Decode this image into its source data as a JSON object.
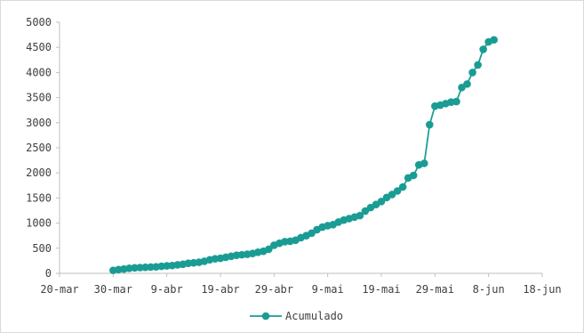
{
  "chart_data": {
    "type": "line",
    "title": "",
    "xlabel": "",
    "ylabel": "",
    "x_axis": {
      "type": "date",
      "range": [
        "2020-03-20",
        "2020-06-18"
      ],
      "tick_labels": [
        "20-mar",
        "30-mar",
        "9-abr",
        "19-abr",
        "29-abr",
        "9-mai",
        "19-mai",
        "29-mai",
        "8-jun",
        "18-jun"
      ]
    },
    "y_axis": {
      "range": [
        0,
        5000
      ],
      "tick_labels": [
        "0",
        "500",
        "1000",
        "1500",
        "2000",
        "2500",
        "3000",
        "3500",
        "4000",
        "4500",
        "5000"
      ]
    },
    "grid": false,
    "legend_position": "bottom",
    "color": "#1a9c94",
    "series": [
      {
        "name": "Acumulado",
        "x": [
          "2020-03-30",
          "2020-03-31",
          "2020-04-01",
          "2020-04-02",
          "2020-04-03",
          "2020-04-04",
          "2020-04-05",
          "2020-04-06",
          "2020-04-07",
          "2020-04-08",
          "2020-04-09",
          "2020-04-10",
          "2020-04-11",
          "2020-04-12",
          "2020-04-13",
          "2020-04-14",
          "2020-04-15",
          "2020-04-16",
          "2020-04-17",
          "2020-04-18",
          "2020-04-19",
          "2020-04-20",
          "2020-04-21",
          "2020-04-22",
          "2020-04-23",
          "2020-04-24",
          "2020-04-25",
          "2020-04-26",
          "2020-04-27",
          "2020-04-28",
          "2020-04-29",
          "2020-04-30",
          "2020-05-01",
          "2020-05-02",
          "2020-05-03",
          "2020-05-04",
          "2020-05-05",
          "2020-05-06",
          "2020-05-07",
          "2020-05-08",
          "2020-05-09",
          "2020-05-10",
          "2020-05-11",
          "2020-05-12",
          "2020-05-13",
          "2020-05-14",
          "2020-05-15",
          "2020-05-16",
          "2020-05-17",
          "2020-05-18",
          "2020-05-19",
          "2020-05-20",
          "2020-05-21",
          "2020-05-22",
          "2020-05-23",
          "2020-05-24",
          "2020-05-25",
          "2020-05-26",
          "2020-05-27",
          "2020-05-28",
          "2020-05-29",
          "2020-05-30",
          "2020-05-31",
          "2020-06-01",
          "2020-06-02",
          "2020-06-03",
          "2020-06-04",
          "2020-06-05",
          "2020-06-06",
          "2020-06-07",
          "2020-06-08",
          "2020-06-09"
        ],
        "values": [
          60,
          75,
          85,
          100,
          110,
          115,
          120,
          125,
          130,
          140,
          150,
          155,
          170,
          180,
          200,
          210,
          220,
          240,
          270,
          290,
          300,
          320,
          340,
          360,
          370,
          380,
          395,
          420,
          440,
          480,
          560,
          600,
          630,
          640,
          660,
          710,
          750,
          800,
          870,
          920,
          950,
          970,
          1020,
          1060,
          1090,
          1120,
          1150,
          1240,
          1310,
          1370,
          1430,
          1510,
          1570,
          1640,
          1720,
          1900,
          1950,
          2160,
          2190,
          2960,
          3330,
          3350,
          3380,
          3410,
          3420,
          3700,
          3770,
          4000,
          4150,
          4460,
          4610,
          4650
        ]
      }
    ]
  }
}
